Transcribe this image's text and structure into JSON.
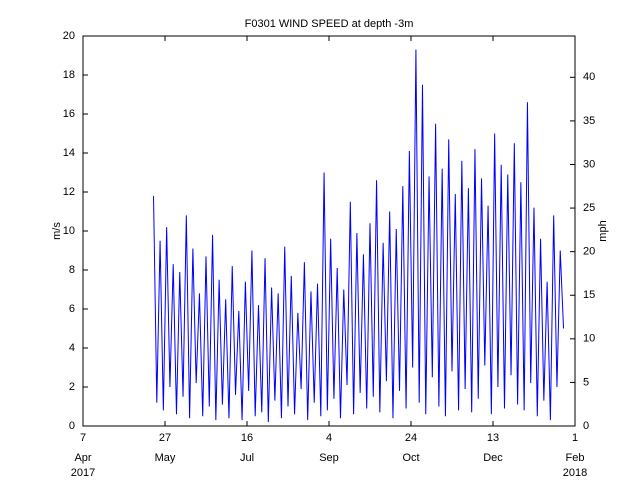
{
  "chart_data": {
    "type": "line",
    "title": "F0301 WIND SPEED at depth -3m",
    "ylabel": "m/s",
    "y2label": "mph",
    "x": [
      "2017-05-20",
      "2017-05-22",
      "2017-05-24",
      "2017-05-26",
      "2017-05-28",
      "2017-05-30",
      "2017-06-01",
      "2017-06-03",
      "2017-06-05",
      "2017-06-07",
      "2017-06-09",
      "2017-06-11",
      "2017-06-13",
      "2017-06-15",
      "2017-06-17",
      "2017-06-19",
      "2017-06-21",
      "2017-06-23",
      "2017-06-25",
      "2017-06-27",
      "2017-06-29",
      "2017-07-01",
      "2017-07-03",
      "2017-07-05",
      "2017-07-07",
      "2017-07-09",
      "2017-07-11",
      "2017-07-13",
      "2017-07-15",
      "2017-07-17",
      "2017-07-19",
      "2017-07-21",
      "2017-07-23",
      "2017-07-25",
      "2017-07-27",
      "2017-07-29",
      "2017-07-31",
      "2017-08-02",
      "2017-08-04",
      "2017-08-06",
      "2017-08-08",
      "2017-08-10",
      "2017-08-12",
      "2017-08-14",
      "2017-08-16",
      "2017-08-18",
      "2017-08-20",
      "2017-08-22",
      "2017-08-24",
      "2017-08-26",
      "2017-08-28",
      "2017-08-30",
      "2017-09-01",
      "2017-09-03",
      "2017-09-05",
      "2017-09-07",
      "2017-09-09",
      "2017-09-11",
      "2017-09-13",
      "2017-09-15",
      "2017-09-17",
      "2017-09-19",
      "2017-09-21",
      "2017-09-23",
      "2017-09-25",
      "2017-09-27",
      "2017-09-29",
      "2017-10-01",
      "2017-10-03",
      "2017-10-05",
      "2017-10-07",
      "2017-10-09",
      "2017-10-11",
      "2017-10-13",
      "2017-10-15",
      "2017-10-17",
      "2017-10-19",
      "2017-10-21",
      "2017-10-23",
      "2017-10-25",
      "2017-10-27",
      "2017-10-29",
      "2017-10-31",
      "2017-11-02",
      "2017-11-04",
      "2017-11-06",
      "2017-11-08",
      "2017-11-10",
      "2017-11-12",
      "2017-11-14",
      "2017-11-16",
      "2017-11-18",
      "2017-11-20",
      "2017-11-22",
      "2017-11-24",
      "2017-11-26",
      "2017-11-28",
      "2017-11-30",
      "2017-12-02",
      "2017-12-04",
      "2017-12-06",
      "2017-12-08",
      "2017-12-10",
      "2017-12-12",
      "2017-12-14",
      "2017-12-16",
      "2017-12-18",
      "2017-12-20",
      "2017-12-22",
      "2017-12-24",
      "2017-12-26",
      "2017-12-28",
      "2017-12-30",
      "2018-01-01",
      "2018-01-03",
      "2018-01-05",
      "2018-01-07",
      "2018-01-09",
      "2018-01-11",
      "2018-01-13",
      "2018-01-15",
      "2018-01-17",
      "2018-01-19",
      "2018-01-21",
      "2018-01-23",
      "2018-01-25"
    ],
    "series": [
      {
        "color": "#0000ff",
        "values": [
          11.8,
          1.2,
          9.5,
          0.8,
          10.2,
          2.0,
          8.3,
          0.6,
          7.9,
          1.5,
          10.8,
          0.4,
          9.1,
          2.2,
          6.8,
          0.5,
          8.7,
          1.0,
          9.8,
          0.3,
          7.5,
          1.1,
          6.5,
          0.4,
          8.2,
          1.6,
          5.9,
          0.3,
          7.4,
          1.8,
          9.0,
          0.5,
          6.2,
          0.7,
          8.6,
          0.2,
          7.1,
          1.3,
          6.8,
          0.4,
          9.2,
          1.0,
          7.7,
          0.6,
          5.8,
          1.9,
          8.4,
          0.3,
          6.9,
          1.2,
          7.3,
          0.5,
          13.0,
          0.8,
          9.6,
          1.4,
          8.1,
          0.4,
          7.0,
          2.1,
          11.5,
          0.6,
          9.9,
          1.7,
          8.8,
          0.9,
          10.4,
          1.5,
          12.6,
          0.7,
          9.4,
          2.3,
          11.0,
          0.4,
          10.1,
          1.8,
          12.3,
          0.9,
          14.1,
          3.0,
          19.3,
          1.2,
          17.5,
          0.6,
          12.8,
          2.5,
          15.5,
          1.0,
          13.2,
          0.5,
          14.7,
          2.8,
          11.9,
          0.8,
          13.6,
          1.9,
          12.2,
          0.7,
          14.2,
          1.4,
          12.7,
          3.1,
          11.3,
          0.6,
          15.0,
          2.0,
          13.4,
          0.9,
          12.9,
          2.6,
          14.5,
          1.1,
          12.5,
          0.8,
          16.6,
          2.2,
          11.2,
          0.5,
          9.6,
          1.3,
          7.4,
          0.3,
          10.8,
          2.0,
          9.0,
          5.0
        ]
      }
    ],
    "xlim": [
      "2017-04-07",
      "2018-02-01"
    ],
    "xticks": [
      {
        "value": "2017-04-07",
        "label": "7"
      },
      {
        "value": "2017-05-27",
        "label": "27"
      },
      {
        "value": "2017-07-16",
        "label": "16"
      },
      {
        "value": "2017-09-04",
        "label": "4"
      },
      {
        "value": "2017-10-24",
        "label": "24"
      },
      {
        "value": "2017-12-13",
        "label": "13"
      },
      {
        "value": "2018-02-01",
        "label": "1"
      }
    ],
    "xtick_months": [
      "Apr",
      "May",
      "Jul",
      "Sep",
      "Oct",
      "Dec",
      "Feb"
    ],
    "xtick_years": [
      {
        "value": "2017-04-07",
        "label": "2017"
      },
      {
        "value": "2018-02-01",
        "label": "2018"
      }
    ],
    "ylim": [
      0,
      20
    ],
    "yticks": [
      0,
      2,
      4,
      6,
      8,
      10,
      12,
      14,
      16,
      18,
      20
    ],
    "y2lim": [
      0,
      44.7387
    ],
    "y2ticks": [
      0,
      5,
      10,
      15,
      20,
      25,
      30,
      35,
      40
    ]
  }
}
